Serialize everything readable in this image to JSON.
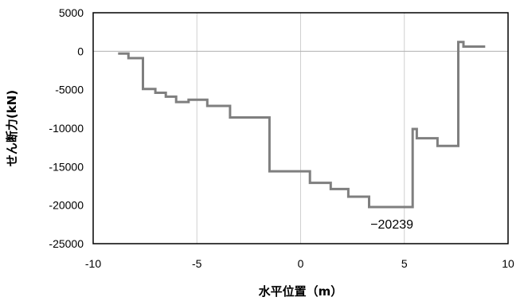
{
  "chart_data": {
    "type": "line",
    "title": "",
    "xlabel": "水平位置（m）",
    "ylabel": "せん断力(kN)",
    "xlim": [
      -10,
      10
    ],
    "ylim": [
      -25000,
      5000
    ],
    "xticks": [
      "-10",
      "-5",
      "0",
      "5",
      "10"
    ],
    "yticks": [
      "5000",
      "0",
      "-5000",
      "-10000",
      "-15000",
      "-20000",
      "-25000"
    ],
    "grid": "vertical",
    "legend": "none",
    "line_color": "#7f7f7f",
    "annotation": {
      "text": "−20239",
      "x": 4.4,
      "y": -20239
    },
    "series": [
      {
        "x": [
          -8.8,
          -8.3,
          -8.3,
          -7.6,
          -7.6,
          -7.0,
          -7.0,
          -6.5,
          -6.5,
          -6.0,
          -6.0,
          -5.4,
          -5.4,
          -4.5,
          -4.5,
          -3.4,
          -3.4,
          -1.5,
          -1.5,
          0.45,
          0.45,
          1.45,
          1.45,
          2.3,
          2.3,
          3.3,
          3.3,
          5.4,
          5.4,
          5.6,
          5.6,
          6.6,
          6.6,
          7.6,
          7.6,
          7.85,
          7.85,
          8.9
        ],
        "y": [
          -300,
          -300,
          -900,
          -900,
          -4900,
          -4900,
          -5400,
          -5400,
          -5900,
          -5900,
          -6600,
          -6600,
          -6300,
          -6300,
          -7100,
          -7100,
          -8600,
          -8600,
          -15600,
          -15600,
          -17100,
          -17100,
          -17900,
          -17900,
          -18900,
          -18900,
          -20239,
          -20239,
          -10100,
          -10100,
          -11300,
          -11300,
          -12300,
          -12300,
          1200,
          1200,
          600,
          600
        ]
      }
    ]
  }
}
